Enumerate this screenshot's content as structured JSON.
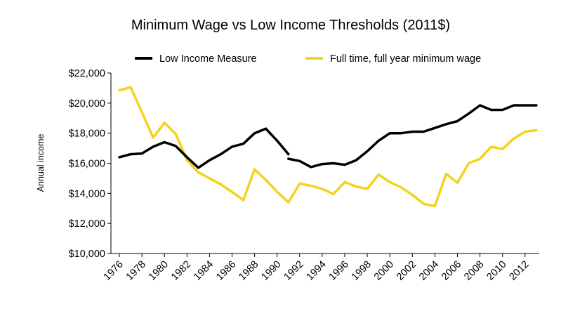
{
  "chart_data": {
    "type": "line",
    "title": "Minimum Wage vs Low Income Thresholds (2011$)",
    "xlabel": "",
    "ylabel": "Annual income",
    "ylim": [
      10000,
      22000
    ],
    "xlim": [
      1976,
      2013
    ],
    "y_ticks": [
      "$10,000",
      "$12,000",
      "$14,000",
      "$16,000",
      "$18,000",
      "$20,000",
      "$22,000"
    ],
    "y_tick_values": [
      10000,
      12000,
      14000,
      16000,
      18000,
      20000,
      22000
    ],
    "x_ticks": [
      "1976",
      "1978",
      "1980",
      "1982",
      "1984",
      "1986",
      "1988",
      "1990",
      "1992",
      "1994",
      "1996",
      "1998",
      "2000",
      "2002",
      "2004",
      "2006",
      "2008",
      "2010",
      "2012"
    ],
    "legend_position": "top",
    "series": [
      {
        "name": "Low Income Measure",
        "color": "#000000",
        "segments": [
          [
            [
              1976,
              16400
            ],
            [
              1977,
              16600
            ],
            [
              1978,
              16650
            ],
            [
              1979,
              17100
            ],
            [
              1980,
              17400
            ],
            [
              1981,
              17150
            ],
            [
              1982,
              16400
            ],
            [
              1983,
              15700
            ],
            [
              1984,
              16200
            ],
            [
              1985,
              16600
            ],
            [
              1986,
              17100
            ],
            [
              1987,
              17300
            ],
            [
              1988,
              18000
            ],
            [
              1989,
              18300
            ],
            [
              1990,
              17500
            ],
            [
              1991,
              16600
            ]
          ],
          [
            [
              1991,
              16300
            ],
            [
              1992,
              16150
            ],
            [
              1993,
              15750
            ],
            [
              1994,
              15950
            ],
            [
              1995,
              16000
            ],
            [
              1996,
              15900
            ],
            [
              1997,
              16200
            ],
            [
              1998,
              16800
            ],
            [
              1999,
              17500
            ],
            [
              2000,
              18000
            ],
            [
              2001,
              18000
            ],
            [
              2002,
              18100
            ],
            [
              2003,
              18100
            ],
            [
              2004,
              18350
            ],
            [
              2005,
              18600
            ],
            [
              2006,
              18800
            ],
            [
              2007,
              19300
            ],
            [
              2008,
              19850
            ],
            [
              2009,
              19550
            ],
            [
              2010,
              19550
            ],
            [
              2011,
              19850
            ],
            [
              2012,
              19850
            ],
            [
              2013,
              19850
            ]
          ]
        ]
      },
      {
        "name": "Full time, full year minimum wage",
        "color": "#f5d21c",
        "segments": [
          [
            [
              1976,
              20850
            ],
            [
              1977,
              21050
            ],
            [
              1978,
              19400
            ],
            [
              1979,
              17700
            ],
            [
              1980,
              18700
            ],
            [
              1981,
              17950
            ],
            [
              1982,
              16200
            ],
            [
              1983,
              15400
            ],
            [
              1984,
              15000
            ],
            [
              1985,
              14600
            ],
            [
              1986,
              14100
            ],
            [
              1987,
              13550
            ],
            [
              1988,
              15600
            ],
            [
              1989,
              14900
            ],
            [
              1990,
              14100
            ],
            [
              1991,
              13400
            ],
            [
              1992,
              14650
            ],
            [
              1993,
              14500
            ],
            [
              1994,
              14300
            ],
            [
              1995,
              13950
            ],
            [
              1996,
              14750
            ],
            [
              1997,
              14450
            ],
            [
              1998,
              14300
            ],
            [
              1999,
              15250
            ],
            [
              2000,
              14750
            ],
            [
              2001,
              14400
            ],
            [
              2002,
              13900
            ],
            [
              2003,
              13300
            ],
            [
              2004,
              13150
            ],
            [
              2005,
              15300
            ],
            [
              2006,
              14700
            ],
            [
              2007,
              16000
            ],
            [
              2008,
              16300
            ],
            [
              2009,
              17100
            ],
            [
              2010,
              16950
            ],
            [
              2011,
              17650
            ],
            [
              2012,
              18100
            ],
            [
              2013,
              18200
            ]
          ]
        ]
      }
    ]
  }
}
